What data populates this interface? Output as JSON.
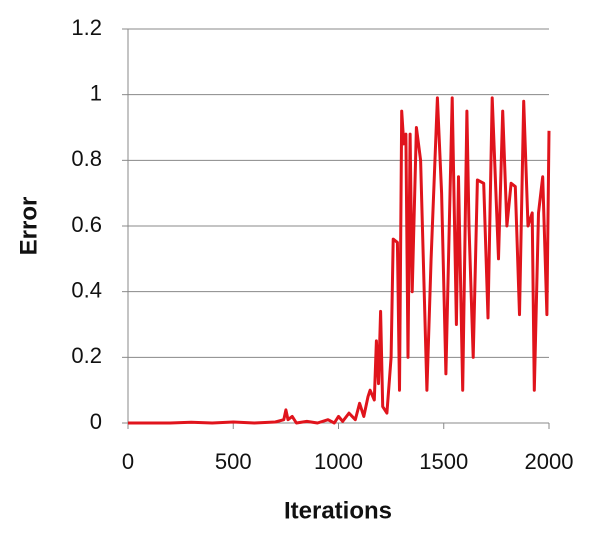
{
  "chart_data": {
    "type": "line",
    "x_label": "Iterations",
    "y_label": "Error",
    "x": [
      0,
      100,
      200,
      300,
      400,
      500,
      600,
      700,
      740,
      750,
      760,
      780,
      800,
      850,
      900,
      950,
      980,
      1000,
      1020,
      1050,
      1080,
      1100,
      1120,
      1140,
      1150,
      1170,
      1180,
      1190,
      1200,
      1210,
      1230,
      1250,
      1260,
      1280,
      1290,
      1300,
      1310,
      1320,
      1330,
      1340,
      1350,
      1370,
      1390,
      1420,
      1440,
      1470,
      1490,
      1510,
      1540,
      1560,
      1570,
      1590,
      1610,
      1620,
      1640,
      1660,
      1690,
      1710,
      1730,
      1760,
      1780,
      1800,
      1820,
      1840,
      1860,
      1880,
      1900,
      1920,
      1930,
      1950,
      1970,
      1990,
      2000
    ],
    "series": [
      {
        "name": "Error",
        "color": "#e0141c",
        "values": [
          0,
          0,
          0,
          0.002,
          0,
          0.003,
          0,
          0.003,
          0.01,
          0.04,
          0.01,
          0.02,
          0,
          0.005,
          0,
          0.01,
          0,
          0.02,
          0.005,
          0.03,
          0.01,
          0.06,
          0.02,
          0.08,
          0.1,
          0.07,
          0.25,
          0.12,
          0.34,
          0.05,
          0.03,
          0.2,
          0.56,
          0.55,
          0.1,
          0.95,
          0.85,
          0.88,
          0.2,
          0.88,
          0.4,
          0.9,
          0.8,
          0.1,
          0.5,
          0.99,
          0.7,
          0.15,
          0.99,
          0.3,
          0.75,
          0.1,
          0.95,
          0.6,
          0.2,
          0.74,
          0.73,
          0.32,
          0.99,
          0.5,
          0.95,
          0.6,
          0.73,
          0.72,
          0.33,
          0.98,
          0.6,
          0.64,
          0.1,
          0.64,
          0.75,
          0.33,
          0.89
        ]
      }
    ],
    "xlim": [
      0,
      2000
    ],
    "xticks": [
      0,
      500,
      1000,
      1500,
      2000
    ],
    "ylim": [
      0,
      1.2
    ],
    "yticks": [
      0,
      0.2,
      0.4,
      0.6,
      0.8,
      1,
      1.2
    ],
    "grid": true
  }
}
